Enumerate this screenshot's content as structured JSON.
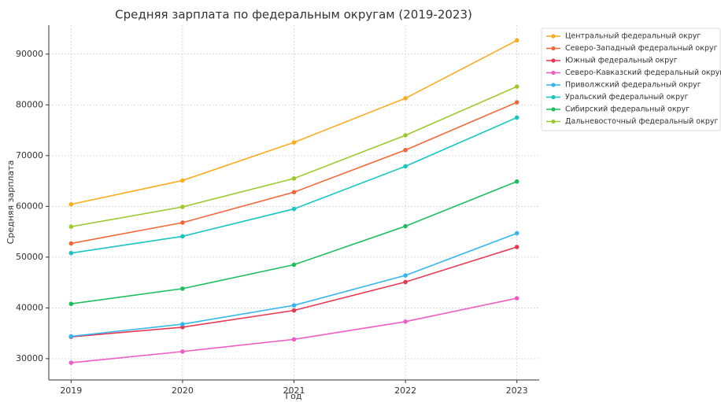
{
  "chart_data": {
    "type": "line",
    "title": "Средняя зарплата по федеральным округам (2019-2023)",
    "x_label": "Год",
    "y_label": "Средняя зарплата",
    "x": [
      2019,
      2020,
      2021,
      2022,
      2023
    ],
    "xlim": [
      2018.8,
      2023.2
    ],
    "xticks": [
      2019,
      2020,
      2021,
      2022,
      2023
    ],
    "ylim": [
      25800,
      95700
    ],
    "yticks": [
      30000,
      40000,
      50000,
      60000,
      70000,
      80000,
      90000
    ],
    "grid": true,
    "legend": "upper right outside",
    "series": [
      {
        "name": "Центральный федеральный округ",
        "color": "#fbab1c",
        "values": [
          60400,
          65100,
          72600,
          81300,
          92700
        ]
      },
      {
        "name": "Северо-Западный федеральный округ",
        "color": "#f0683a",
        "values": [
          52700,
          56800,
          62800,
          71100,
          80500
        ]
      },
      {
        "name": "Южный федеральный округ",
        "color": "#e63a52",
        "values": [
          34300,
          36200,
          39500,
          45100,
          52000
        ]
      },
      {
        "name": "Северо-Кавказский федеральный округ",
        "color": "#ee5cc4",
        "values": [
          29200,
          31400,
          33800,
          37300,
          41900
        ]
      },
      {
        "name": "Приволжский федеральный округ",
        "color": "#34b6ee",
        "values": [
          34400,
          36800,
          40500,
          46400,
          54700
        ]
      },
      {
        "name": "Уральский федеральный округ",
        "color": "#17c5c3",
        "values": [
          50800,
          54100,
          59500,
          67900,
          77500
        ]
      },
      {
        "name": "Сибирский федеральный округ",
        "color": "#1dbe5f",
        "values": [
          40800,
          43800,
          48500,
          56100,
          64900
        ]
      },
      {
        "name": "Дальневосточный федеральный округ",
        "color": "#9cc92c",
        "values": [
          56000,
          59900,
          65500,
          74000,
          83600
        ]
      }
    ]
  }
}
